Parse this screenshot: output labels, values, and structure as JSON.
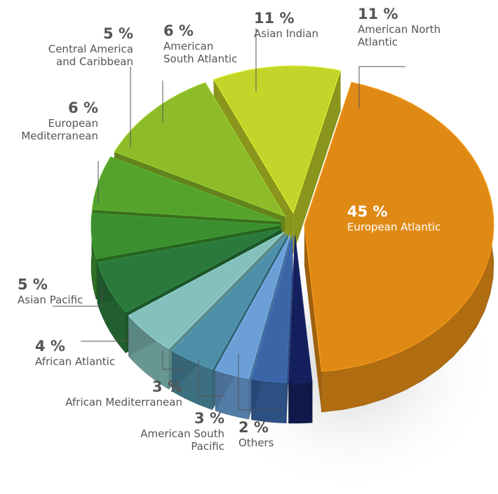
{
  "chart_data": {
    "type": "pie",
    "title": "",
    "slices": [
      {
        "label": "European Atlantic",
        "value": 45,
        "value_label": "45 %",
        "color": "#e08a16"
      },
      {
        "label": "Others",
        "value": 2,
        "value_label": "2 %",
        "color": "#14205e"
      },
      {
        "label": "American South\nPacific",
        "value": 3,
        "value_label": "3 %",
        "color": "#3a66a8"
      },
      {
        "label": "African Mediterranean",
        "value": 3,
        "value_label": "3 %",
        "color": "#6b9fd6"
      },
      {
        "label": "African Atlantic",
        "value": 4,
        "value_label": "4 %",
        "color": "#4d8fa6"
      },
      {
        "label": "Asian Pacific",
        "value": 5,
        "value_label": "5 %",
        "color": "#84c0bc"
      },
      {
        "label": "European\nMediterranean",
        "value": 6,
        "value_label": "6 %",
        "color": "#2b7a3c"
      },
      {
        "label": "Central America\nand Caribbean",
        "value": 5,
        "value_label": "5 %",
        "color": "#3b8f2e"
      },
      {
        "label": "American\nSouth Atlantic",
        "value": 6,
        "value_label": "6 %",
        "color": "#55a22c"
      },
      {
        "label": "Asian Indian",
        "value": 11,
        "value_label": "11 %",
        "color": "#8dbb2a"
      },
      {
        "label": "American North\nAtlantic",
        "value": 11,
        "value_label": "11 %",
        "color": "#c3d52a"
      }
    ]
  }
}
